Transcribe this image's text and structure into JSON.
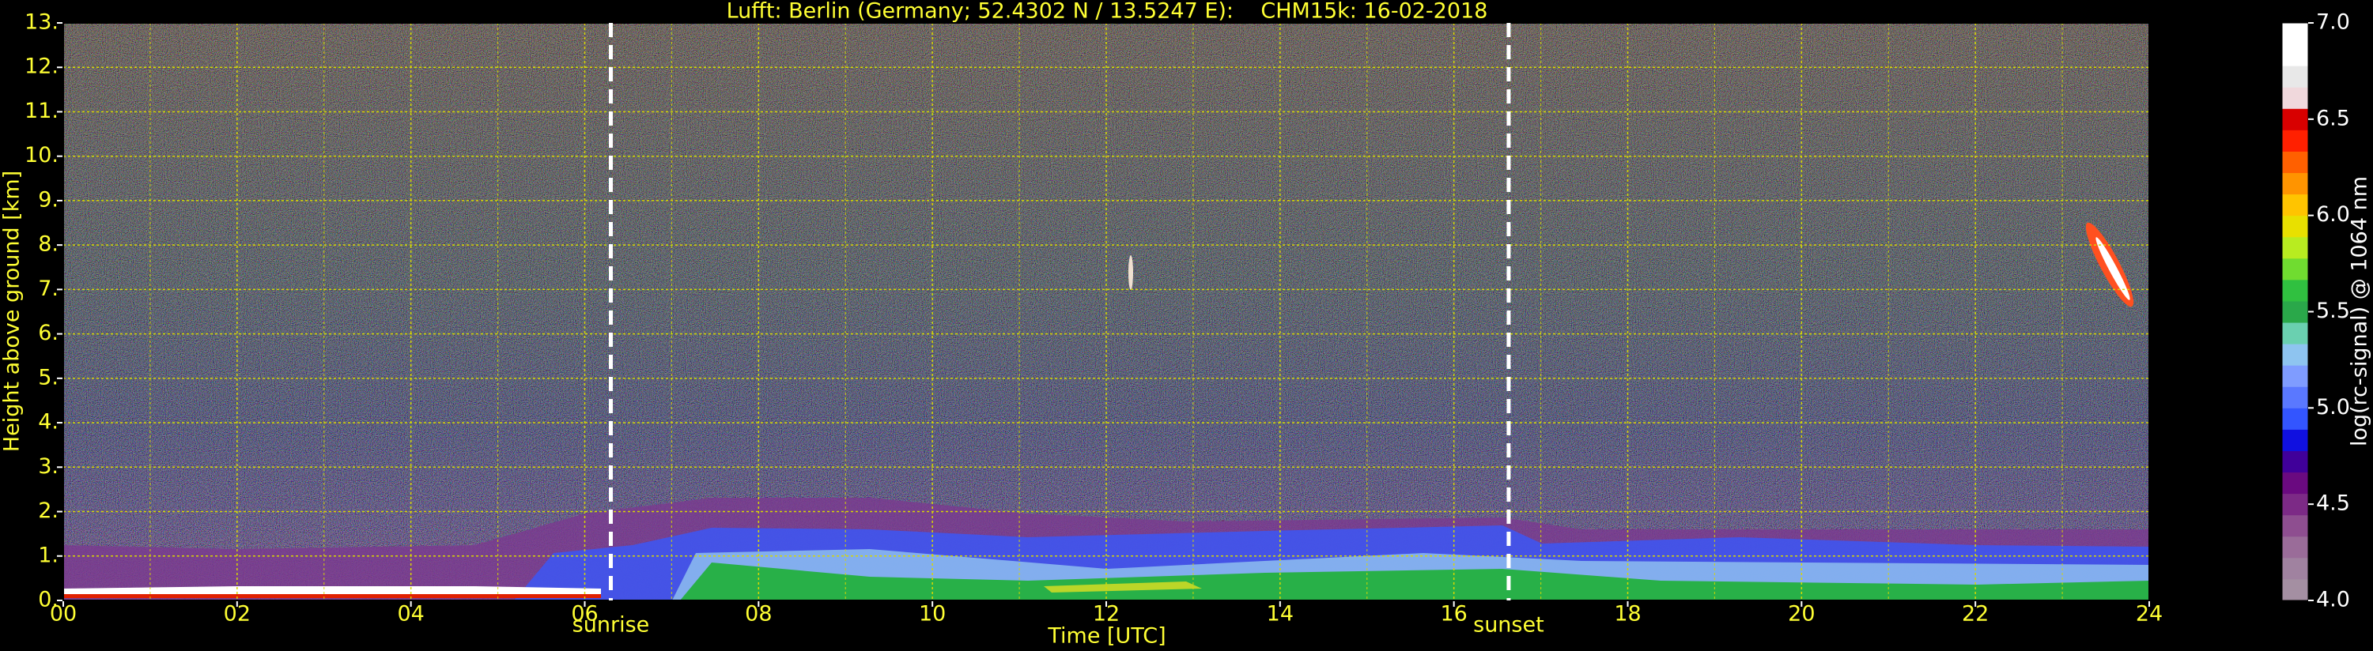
{
  "chart_data": {
    "type": "heatmap",
    "title": "Lufft: Berlin (Germany; 52.4302 N / 13.5247 E):    CHM15k: 16-02-2018",
    "x_label": "Time [UTC]",
    "y_label": "Height above ground [km]",
    "xlim": [
      0,
      24
    ],
    "ylim": [
      0,
      13
    ],
    "xticks": [
      {
        "value": 0,
        "label": "00"
      },
      {
        "value": 2,
        "label": "02"
      },
      {
        "value": 4,
        "label": "04"
      },
      {
        "value": 6,
        "label": "06"
      },
      {
        "value": 8,
        "label": "08"
      },
      10,
      12,
      14,
      16,
      18,
      20,
      22,
      24
    ],
    "xminorticks": [
      1,
      3,
      5,
      7,
      9,
      11,
      13,
      15,
      17,
      19,
      21,
      23
    ],
    "yticks": [
      {
        "value": 0,
        "label": "0."
      },
      {
        "value": 1,
        "label": "1."
      },
      {
        "value": 2,
        "label": "2."
      },
      {
        "value": 3,
        "label": "3."
      },
      {
        "value": 4,
        "label": "4."
      },
      {
        "value": 5,
        "label": "5."
      },
      {
        "value": 6,
        "label": "6."
      },
      {
        "value": 7,
        "label": "7."
      },
      {
        "value": 8,
        "label": "8."
      },
      {
        "value": 9,
        "label": "9."
      },
      {
        "value": 10,
        "label": "10."
      },
      {
        "value": 11,
        "label": "11."
      },
      {
        "value": 12,
        "label": "12."
      },
      {
        "value": 13,
        "label": "13."
      }
    ],
    "grid": true,
    "grid_color": "#d8d800",
    "text_color": "#ffff33",
    "annotations": [
      {
        "text": "sunrise",
        "x": 6.3
      },
      {
        "text": "sunset",
        "x": 16.63
      }
    ],
    "colorbar": {
      "label": "log(rc-signal) @ 1064 nm",
      "lim": [
        4,
        7
      ],
      "ticks": [
        {
          "value": 4,
          "label": "4.0"
        },
        {
          "value": 4.5,
          "label": "4.5"
        },
        {
          "value": 5,
          "label": "5.0"
        },
        {
          "value": 5.5,
          "label": "5.5"
        },
        {
          "value": 6,
          "label": "6.0"
        },
        {
          "value": 6.5,
          "label": "6.5"
        },
        {
          "value": 7,
          "label": "7.0"
        }
      ],
      "colors": [
        "#a48fa2",
        "#a082a0",
        "#9a6c99",
        "#8e4e90",
        "#7c2a86",
        "#6a0a80",
        "#40009a",
        "#1010e0",
        "#3355ff",
        "#5a78ff",
        "#7f9cff",
        "#8ec4f0",
        "#6ad0b0",
        "#2aa84a",
        "#30c040",
        "#70dc30",
        "#b8ec20",
        "#e8e000",
        "#ffc400",
        "#ff9400",
        "#ff6000",
        "#ff2000",
        "#d80000",
        "#f0d8dc",
        "#e8e8e8",
        "#ffffff",
        "#ffffff"
      ]
    }
  }
}
